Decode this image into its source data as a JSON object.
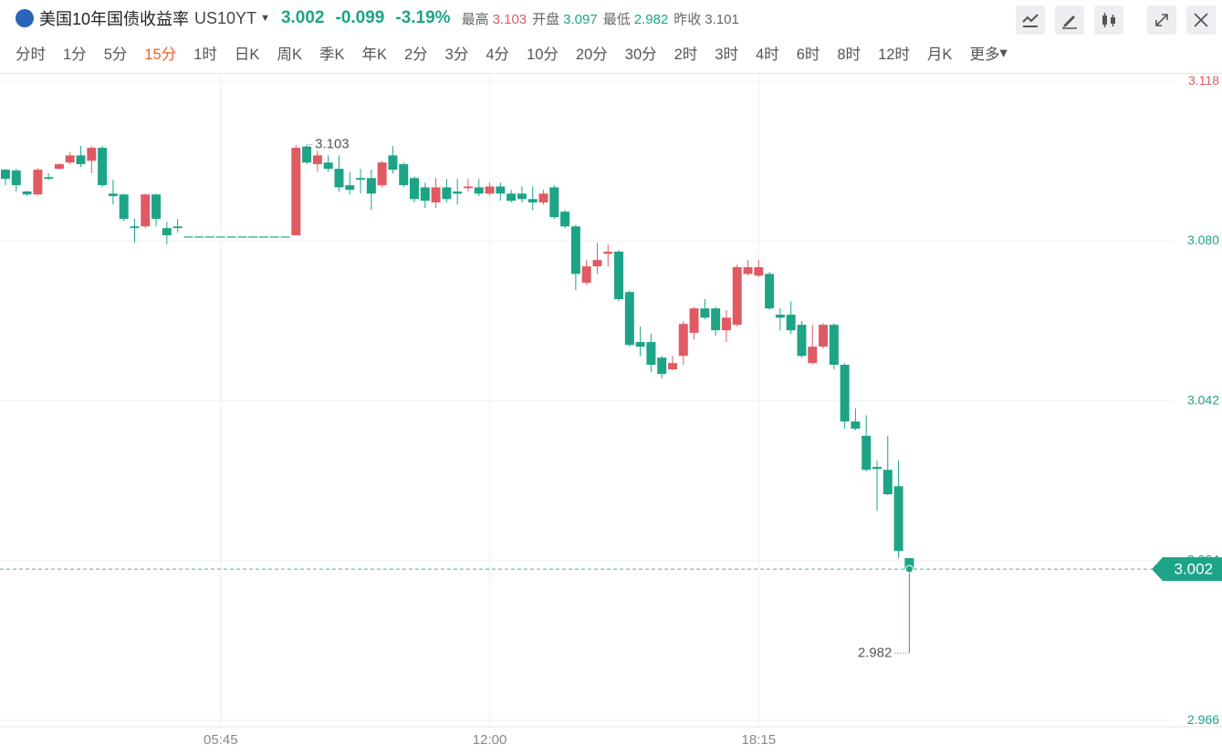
{
  "header": {
    "title": "美国10年国债收益率",
    "code": "US10YT",
    "price": 3.002,
    "change": -0.099,
    "change_pct": "-3.19%",
    "stats": [
      {
        "label": "最高",
        "value": 3.103
      },
      {
        "label": "开盘",
        "value": 3.097
      },
      {
        "label": "最低",
        "value": 2.982
      },
      {
        "label": "昨收",
        "value": 3.101
      }
    ]
  },
  "tabs": [
    "分时",
    "1分",
    "5分",
    "15分",
    "1时",
    "日K",
    "周K",
    "季K",
    "年K",
    "2分",
    "3分",
    "4分",
    "10分",
    "20分",
    "30分",
    "2时",
    "3时",
    "4时",
    "6时",
    "8时",
    "12时",
    "月K",
    "更多"
  ],
  "active_tab": 3,
  "chart_data": {
    "type": "candlestick",
    "up_color": "#e05a63",
    "down_color": "#1da487",
    "categories": [
      null,
      null,
      null,
      null,
      null,
      null,
      null,
      null,
      null,
      null,
      null,
      null,
      null,
      null,
      null,
      null,
      null,
      null,
      null,
      null,
      "05:45",
      null,
      null,
      null,
      null,
      null,
      null,
      null,
      null,
      null,
      null,
      null,
      null,
      null,
      null,
      null,
      null,
      null,
      null,
      null,
      null,
      null,
      null,
      null,
      null,
      "12:00",
      null,
      null,
      null,
      null,
      null,
      null,
      null,
      null,
      null,
      null,
      null,
      null,
      null,
      null,
      null,
      null,
      null,
      null,
      null,
      null,
      null,
      null,
      null,
      null,
      "18:15",
      null,
      null,
      null,
      null,
      null,
      null,
      null,
      null,
      null,
      null,
      null,
      null,
      null,
      null
    ],
    "open": [
      3.097,
      3.0968,
      3.0918,
      3.0911,
      3.0952,
      3.0972,
      3.0987,
      3.1004,
      3.0991,
      3.1022,
      3.0913,
      3.0911,
      3.0835,
      3.0835,
      3.0911,
      3.0831,
      3.0835,
      3.0811,
      3.0811,
      3.0811,
      3.0811,
      3.0811,
      3.0811,
      3.0811,
      3.0811,
      3.0811,
      3.0811,
      3.0814,
      3.1025,
      3.0983,
      3.0987,
      3.0972,
      3.0933,
      3.095,
      3.095,
      3.0933,
      3.1004,
      3.0983,
      3.095,
      3.0928,
      3.0892,
      3.0928,
      3.0918,
      3.0926,
      3.0928,
      3.0913,
      3.093,
      3.0913,
      3.0913,
      3.09,
      3.0892,
      3.0928,
      3.087,
      3.0835,
      3.0701,
      3.074,
      3.077,
      3.0775,
      3.0679,
      3.056,
      3.056,
      3.0523,
      3.0495,
      3.0527,
      3.0582,
      3.064,
      3.064,
      3.0588,
      3.0601,
      3.0722,
      3.0718,
      3.0722,
      3.0625,
      3.0625,
      3.0601,
      3.051,
      3.0549,
      3.0601,
      3.0506,
      3.0371,
      3.0337,
      3.0263,
      3.0256,
      3.0217,
      3.0046
    ],
    "high": [
      3.0972,
      3.0972,
      3.092,
      3.0974,
      3.0961,
      3.0985,
      3.1011,
      3.1026,
      3.1026,
      3.1026,
      3.0946,
      3.0913,
      3.0853,
      3.0913,
      3.0913,
      3.0846,
      3.0853,
      3.0811,
      3.0811,
      3.0811,
      3.0811,
      3.0811,
      3.0811,
      3.0811,
      3.0811,
      3.0811,
      3.0811,
      3.1028,
      3.103,
      3.1015,
      3.1004,
      3.1004,
      3.0965,
      3.0972,
      3.097,
      3.0991,
      3.1026,
      3.0987,
      3.0954,
      3.0939,
      3.095,
      3.0948,
      3.0948,
      3.0948,
      3.0948,
      3.0939,
      3.0939,
      3.0922,
      3.093,
      3.093,
      3.0922,
      3.0933,
      3.0874,
      3.0839,
      3.0755,
      3.0796,
      3.0792,
      3.0779,
      3.0683,
      3.0597,
      3.058,
      3.0527,
      3.0527,
      3.061,
      3.0644,
      3.0662,
      3.0644,
      3.0636,
      3.0744,
      3.0755,
      3.0755,
      3.0727,
      3.064,
      3.0657,
      3.061,
      3.0601,
      3.0605,
      3.0605,
      3.051,
      3.0402,
      3.0386,
      3.0278,
      3.0337,
      3.0278,
      3.0046
    ],
    "low": [
      3.0933,
      3.0918,
      3.0907,
      3.0909,
      3.0946,
      3.097,
      3.0983,
      3.0976,
      3.0961,
      3.0928,
      3.0887,
      3.0848,
      3.0796,
      3.0831,
      3.0835,
      3.0792,
      3.082,
      3.0811,
      3.0811,
      3.0811,
      3.0811,
      3.0811,
      3.0811,
      3.0811,
      3.0811,
      3.0811,
      3.0811,
      3.0814,
      3.0983,
      3.0965,
      3.0965,
      3.0918,
      3.0911,
      3.0913,
      3.0874,
      3.0928,
      3.0961,
      3.0928,
      3.0892,
      3.0879,
      3.0879,
      3.0892,
      3.0887,
      3.0918,
      3.0907,
      3.0909,
      3.0896,
      3.0892,
      3.0892,
      3.0874,
      3.0887,
      3.0853,
      3.0831,
      3.0683,
      3.0696,
      3.0722,
      3.074,
      3.0657,
      3.0549,
      3.0527,
      3.0488,
      3.0473,
      3.0493,
      3.0506,
      3.0566,
      3.0614,
      3.0575,
      3.056,
      3.0597,
      3.0718,
      3.0714,
      3.0636,
      3.0588,
      3.0579,
      3.0523,
      3.0506,
      3.0545,
      3.0495,
      3.0354,
      3.035,
      3.0252,
      3.0159,
      3.0196,
      3.0046,
      2.982
    ],
    "close": [
      3.0948,
      3.0933,
      3.0911,
      3.097,
      3.0948,
      3.0983,
      3.1004,
      3.0983,
      3.1022,
      3.0933,
      3.0907,
      3.0853,
      3.0831,
      3.0911,
      3.0853,
      3.0814,
      3.0831,
      3.0811,
      3.0811,
      3.0811,
      3.0811,
      3.0811,
      3.0811,
      3.0811,
      3.0811,
      3.0811,
      3.0811,
      3.1022,
      3.0987,
      3.1004,
      3.0972,
      3.0928,
      3.0922,
      3.0946,
      3.0913,
      3.0987,
      3.097,
      3.0933,
      3.09,
      3.0896,
      3.0928,
      3.09,
      3.0913,
      3.093,
      3.0913,
      3.093,
      3.0913,
      3.0896,
      3.09,
      3.0892,
      3.0913,
      3.0857,
      3.0835,
      3.0722,
      3.074,
      3.0755,
      3.0775,
      3.0662,
      3.0553,
      3.0549,
      3.0506,
      3.0484,
      3.051,
      3.0603,
      3.064,
      3.0618,
      3.0588,
      3.0618,
      3.0738,
      3.0738,
      3.0738,
      3.064,
      3.0618,
      3.0588,
      3.0527,
      3.0549,
      3.0601,
      3.0506,
      3.0371,
      3.0354,
      3.0256,
      3.0258,
      3.0198,
      3.0063,
      3.002
    ],
    "ylim": [
      2.9645,
      3.12
    ],
    "yticks": [
      3.118,
      {
        "value": 3.08,
        "label": "3.080"
      },
      3.042,
      3.004,
      2.966
    ],
    "grid": true,
    "high_label": 3.103,
    "low_label": 2.982,
    "last_price": 3.002
  }
}
